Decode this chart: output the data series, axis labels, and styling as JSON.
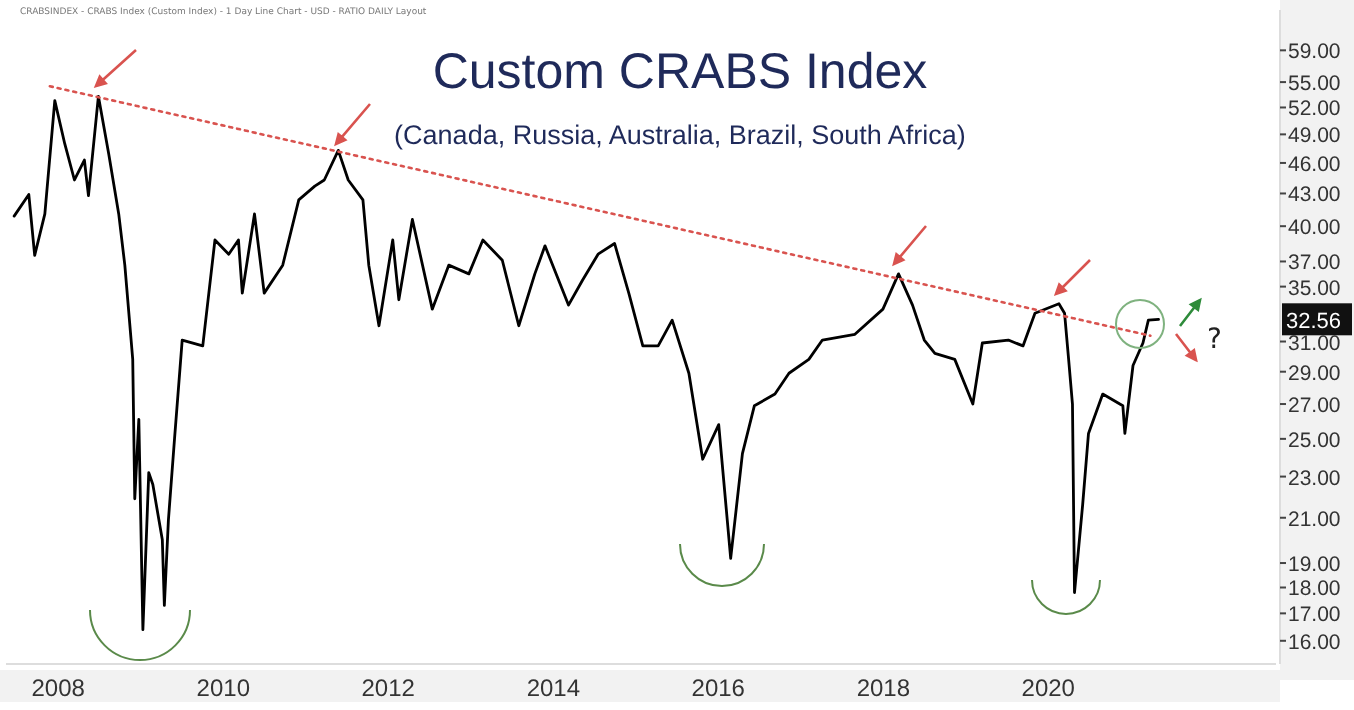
{
  "chart_data": {
    "type": "line",
    "title": "Custom CRABS Index",
    "subtitle": "(Canada, Russia, Australia, Brazil, South Africa)",
    "log": "y",
    "grid": false,
    "xlim": [
      "2007-05-15",
      "2022-10-05"
    ],
    "xticks": [
      "2008",
      "2010",
      "2012",
      "2014",
      "2016",
      "2018",
      "2020"
    ],
    "ylim": [
      15.2,
      64.5
    ],
    "yticks": [
      {
        "value": 16,
        "label": "16.00"
      },
      {
        "value": 17,
        "label": "17.00"
      },
      {
        "value": 18,
        "label": "18.00"
      },
      {
        "value": 19,
        "label": "19.00"
      },
      {
        "value": 21,
        "label": "21.00"
      },
      {
        "value": 23,
        "label": "23.00"
      },
      {
        "value": 25,
        "label": "25.00"
      },
      {
        "value": 27,
        "label": "27.00"
      },
      {
        "value": 29,
        "label": "29.00"
      },
      {
        "value": 31,
        "label": "31.00"
      },
      {
        "value": 35,
        "label": "35.00"
      },
      {
        "value": 37,
        "label": "37.00"
      },
      {
        "value": 40,
        "label": "40.00"
      },
      {
        "value": 43,
        "label": "43.00"
      },
      {
        "value": 46,
        "label": "46.00"
      },
      {
        "value": 49,
        "label": "49.00"
      },
      {
        "value": 52,
        "label": "52.00"
      },
      {
        "value": 55,
        "label": "55.00"
      },
      {
        "value": 59,
        "label": "59.00"
      }
    ],
    "annotations": [
      "CRABSINDEX - CRABS Index (Custom Index) - 1 Day Line Chart - USD - RATIO DAILY Layout",
      "32.56",
      "?"
    ],
    "series": [
      {
        "color": "#000000",
        "x": [
          "2007-06-20",
          "2007-08-24",
          "2007-09-19",
          "2007-11-03",
          "2007-12-17",
          "2008-01-30",
          "2008-03-13",
          "2008-04-26",
          "2008-05-14",
          "2008-06-27",
          "2008-08-12",
          "2008-09-25",
          "2008-10-22",
          "2008-11-26",
          "2008-12-05",
          "2008-12-23",
          "2009-01-10",
          "2009-02-05",
          "2009-02-23",
          "2009-04-06",
          "2009-04-15",
          "2009-05-03",
          "2009-05-30",
          "2009-07-03",
          "2009-10-02",
          "2009-11-25",
          "2010-01-25",
          "2010-03-09",
          "2010-03-26",
          "2010-05-19",
          "2010-07-01",
          "2010-09-21",
          "2010-12-01",
          "2011-02-10",
          "2011-03-24",
          "2011-05-25",
          "2011-07-08",
          "2011-09-11",
          "2011-10-07",
          "2011-11-21",
          "2012-01-21",
          "2012-02-17",
          "2012-04-17",
          "2012-07-14",
          "2012-09-25",
          "2012-12-23",
          "2013-02-23",
          "2013-05-20",
          "2013-08-01",
          "2013-10-11",
          "2013-11-25",
          "2014-03-09",
          "2014-05-10",
          "2014-07-18",
          "2014-09-29",
          "2014-12-01",
          "2015-02-01",
          "2015-04-10",
          "2015-06-11",
          "2015-08-24",
          "2015-10-24",
          "2016-01-03",
          "2016-02-25",
          "2016-04-17",
          "2016-06-09",
          "2016-09-08",
          "2016-11-09",
          "2017-02-05",
          "2017-04-06",
          "2017-08-28",
          "2017-12-30",
          "2018-03-09",
          "2018-05-10",
          "2018-07-01",
          "2018-08-17",
          "2018-11-13",
          "2019-02-01",
          "2019-03-15",
          "2019-07-08",
          "2019-09-11",
          "2019-11-03",
          "2020-02-17",
          "2020-03-13",
          "2020-03-31",
          "2020-04-17",
          "2020-04-26",
          "2020-06-01",
          "2020-06-27",
          "2020-08-29",
          "2020-11-26",
          "2020-12-05",
          "2021-01-10",
          "2021-02-23",
          "2021-03-19",
          "2021-05-03"
        ],
        "values": [
          40.9,
          42.9,
          37.5,
          41.1,
          52.8,
          48.0,
          44.3,
          46.3,
          42.8,
          53.3,
          46.9,
          41.1,
          36.7,
          29.8,
          21.9,
          26.1,
          16.4,
          23.2,
          22.6,
          20.0,
          17.3,
          20.9,
          25.0,
          31.1,
          30.7,
          38.8,
          37.6,
          38.8,
          34.5,
          41.1,
          34.5,
          36.7,
          42.4,
          43.7,
          44.3,
          47.3,
          44.3,
          42.4,
          36.7,
          32.1,
          38.8,
          34.0,
          40.6,
          33.3,
          36.7,
          36.0,
          38.8,
          37.1,
          32.1,
          36.0,
          38.3,
          33.6,
          35.5,
          37.6,
          38.5,
          34.5,
          30.7,
          30.7,
          32.5,
          28.9,
          23.9,
          25.8,
          19.2,
          24.2,
          26.9,
          27.6,
          28.9,
          29.8,
          31.1,
          31.5,
          33.3,
          36.0,
          33.6,
          31.1,
          30.2,
          29.8,
          27.0,
          30.9,
          31.1,
          30.7,
          33.0,
          33.7,
          33.0,
          29.8,
          27.0,
          17.8,
          21.6,
          25.3,
          27.6,
          26.9,
          25.3,
          29.4,
          30.9,
          32.5,
          32.56
        ]
      },
      {
        "color": "#d9534f",
        "line_style": "dotted",
        "x": [
          "2007-11-25",
          "2021-03-28"
        ],
        "values": [
          54.5,
          31.4
        ]
      }
    ]
  }
}
